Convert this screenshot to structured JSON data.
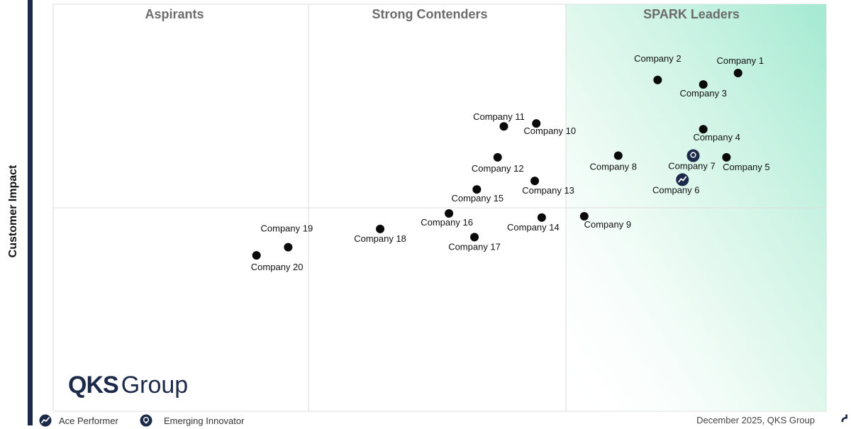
{
  "quadrants": [
    {
      "name": "Aspirants"
    },
    {
      "name": "Strong Contenders"
    },
    {
      "name": "SPARK Leaders"
    }
  ],
  "axes": {
    "ylabel": "Customer Impact"
  },
  "logo": {
    "part1": "QKS",
    "part2": "Group"
  },
  "legend": {
    "ace_performer": "Ace Performer",
    "emerging_innovator": "Emerging Innovator"
  },
  "footer": {
    "date_source": "December 2025, QKS Group"
  },
  "colors": {
    "dot": "#0a0a0a",
    "badge": "#1c2a4a",
    "leaders_gradient": "#a8ecd4",
    "grid": "#dcdcdc",
    "axis_bar": "#1c2a4a"
  },
  "chart_data": {
    "type": "scatter",
    "title": "",
    "xlabel": "",
    "ylabel": "Customer Impact",
    "xlim": [
      0,
      100
    ],
    "ylim": [
      0,
      100
    ],
    "grid": true,
    "points": [
      {
        "name": "Company 1",
        "x": 88.6,
        "y": 83.1,
        "marker": "dot"
      },
      {
        "name": "Company 2",
        "x": 78.2,
        "y": 81.4,
        "marker": "dot"
      },
      {
        "name": "Company 3",
        "x": 84.1,
        "y": 80.3,
        "marker": "dot"
      },
      {
        "name": "Company 4",
        "x": 84.1,
        "y": 69.3,
        "marker": "dot"
      },
      {
        "name": "Company 5",
        "x": 87.1,
        "y": 62.4,
        "marker": "dot"
      },
      {
        "name": "Company 6",
        "x": 81.4,
        "y": 56.9,
        "marker": "ace"
      },
      {
        "name": "Company 7",
        "x": 82.8,
        "y": 62.8,
        "marker": "innovator"
      },
      {
        "name": "Company 8",
        "x": 73.1,
        "y": 62.8,
        "marker": "dot"
      },
      {
        "name": "Company 9",
        "x": 68.7,
        "y": 47.9,
        "marker": "dot"
      },
      {
        "name": "Company 10",
        "x": 62.5,
        "y": 70.7,
        "marker": "dot"
      },
      {
        "name": "Company 11",
        "x": 58.3,
        "y": 70.0,
        "marker": "dot"
      },
      {
        "name": "Company 12",
        "x": 57.5,
        "y": 62.4,
        "marker": "dot"
      },
      {
        "name": "Company 13",
        "x": 62.3,
        "y": 56.6,
        "marker": "dot"
      },
      {
        "name": "Company 14",
        "x": 63.2,
        "y": 47.6,
        "marker": "dot"
      },
      {
        "name": "Company 15",
        "x": 54.8,
        "y": 54.5,
        "marker": "dot"
      },
      {
        "name": "Company 16",
        "x": 51.2,
        "y": 48.6,
        "marker": "dot"
      },
      {
        "name": "Company 17",
        "x": 54.5,
        "y": 42.8,
        "marker": "dot"
      },
      {
        "name": "Company 18",
        "x": 42.3,
        "y": 44.8,
        "marker": "dot"
      },
      {
        "name": "Company 19",
        "x": 30.4,
        "y": 40.3,
        "marker": "dot"
      },
      {
        "name": "Company 20",
        "x": 26.3,
        "y": 38.3,
        "marker": "dot"
      }
    ]
  }
}
